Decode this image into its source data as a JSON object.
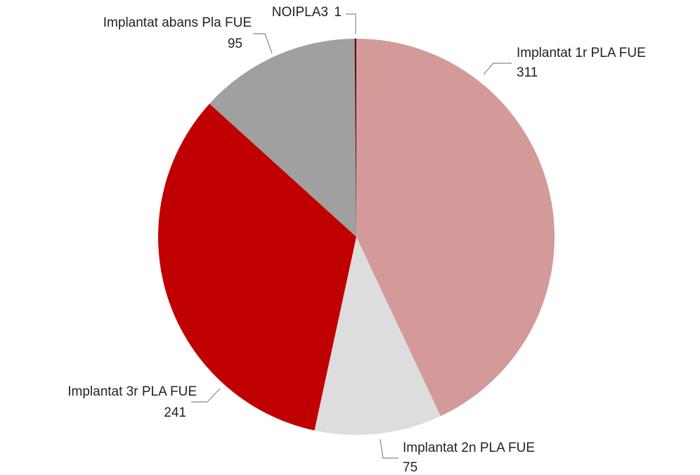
{
  "chart_data": {
    "type": "pie",
    "categories": [
      "Implantat 1r PLA FUE",
      "Implantat 2n PLA FUE",
      "Implantat 3r PLA FUE",
      "Implantat abans Pla FUE",
      "NOIPLA3"
    ],
    "values": [
      311,
      75,
      241,
      95,
      1
    ],
    "colors": [
      "#d49a9a",
      "#dddddd",
      "#c00000",
      "#a0a0a0",
      "#5a1010"
    ]
  }
}
